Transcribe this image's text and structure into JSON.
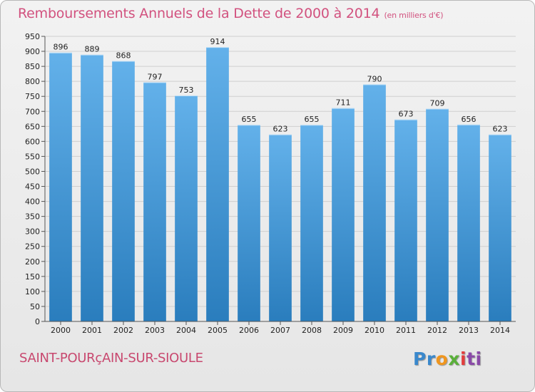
{
  "header": {
    "title": "Remboursements Annuels de la Dette de 2000 à 2014",
    "subtitle": "(en milliers d'€)"
  },
  "footer": {
    "commune": "SAINT-POURçAIN-SUR-SIOULE",
    "logo": {
      "p1": "Pr",
      "p2": "o",
      "p3": "x",
      "p4": "i",
      "p5": "ti"
    }
  },
  "colors": {
    "title": "#d2527f",
    "bar_top": "#63b1ea",
    "bar_bottom": "#2a7dbd"
  },
  "chart_data": {
    "type": "bar",
    "title": "Remboursements Annuels de la Dette de 2000 à 2014",
    "subtitle": "(en milliers d'€)",
    "xlabel": "",
    "ylabel": "",
    "categories": [
      "2000",
      "2001",
      "2002",
      "2003",
      "2004",
      "2005",
      "2006",
      "2007",
      "2008",
      "2009",
      "2010",
      "2011",
      "2012",
      "2013",
      "2014"
    ],
    "values": [
      896,
      889,
      868,
      797,
      753,
      914,
      655,
      623,
      655,
      711,
      790,
      673,
      709,
      656,
      623
    ],
    "ylim": [
      0,
      950
    ],
    "yticks": [
      0,
      50,
      100,
      150,
      200,
      250,
      300,
      350,
      400,
      450,
      500,
      550,
      600,
      650,
      700,
      750,
      800,
      850,
      900,
      950
    ],
    "grid": true,
    "legend": "none"
  }
}
